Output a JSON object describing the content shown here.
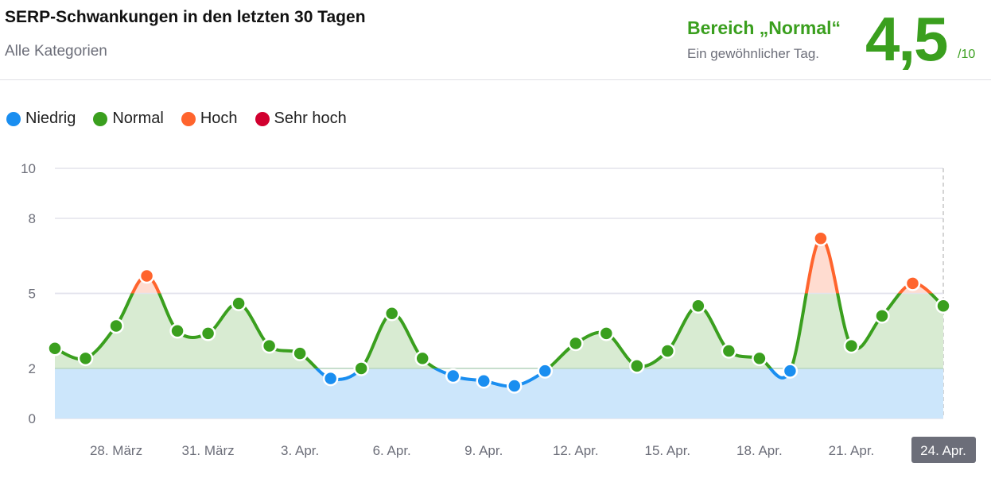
{
  "header": {
    "title": "SERP-Schwankungen in den letzten 30 Tagen",
    "subtitle": "Alle Kategorien",
    "range_label": "Bereich „Normal“",
    "range_desc": "Ein gewöhnlicher Tag.",
    "score": "4,5",
    "score_max": "/10"
  },
  "colors": {
    "niedrig": "#1a8ef0",
    "normal": "#3a9f1e",
    "hoch": "#ff642d",
    "sehr_hoch": "#d1002f"
  },
  "chart_data": {
    "type": "area",
    "legend": [
      {
        "name": "Niedrig",
        "color": "#1a8ef0"
      },
      {
        "name": "Normal",
        "color": "#3a9f1e"
      },
      {
        "name": "Hoch",
        "color": "#ff642d"
      },
      {
        "name": "Sehr hoch",
        "color": "#d1002f"
      }
    ],
    "legend_position": "top-left",
    "ylim": [
      0,
      10
    ],
    "yticks": [
      "0",
      "2",
      "5",
      "8",
      "10"
    ],
    "thresholds": [
      2,
      5,
      8
    ],
    "x": [
      "26. März",
      "27. März",
      "28. März",
      "29. März",
      "30. März",
      "31. März",
      "1. Apr.",
      "2. Apr.",
      "3. Apr.",
      "4. Apr.",
      "5. Apr.",
      "6. Apr.",
      "7. Apr.",
      "8. Apr.",
      "9. Apr.",
      "10. Apr.",
      "11. Apr.",
      "12. Apr.",
      "13. Apr.",
      "14. Apr.",
      "15. Apr.",
      "16. Apr.",
      "17. Apr.",
      "18. Apr.",
      "19. Apr.",
      "20. Apr.",
      "21. Apr.",
      "22. Apr.",
      "23. Apr.",
      "24. Apr."
    ],
    "xticks": [
      "28. März",
      "31. März",
      "3. Apr.",
      "6. Apr.",
      "9. Apr.",
      "12. Apr.",
      "15. Apr.",
      "18. Apr.",
      "21. Apr.",
      "24. Apr."
    ],
    "values": [
      2.8,
      2.4,
      3.7,
      5.7,
      3.5,
      3.4,
      4.6,
      2.9,
      2.6,
      1.6,
      2.0,
      4.2,
      2.4,
      1.7,
      1.5,
      1.3,
      1.9,
      3.0,
      3.4,
      2.1,
      2.7,
      4.5,
      2.7,
      2.4,
      1.9,
      7.2,
      2.9,
      4.1,
      5.4,
      4.5
    ],
    "highlighted": "24. Apr.",
    "grid": true
  }
}
